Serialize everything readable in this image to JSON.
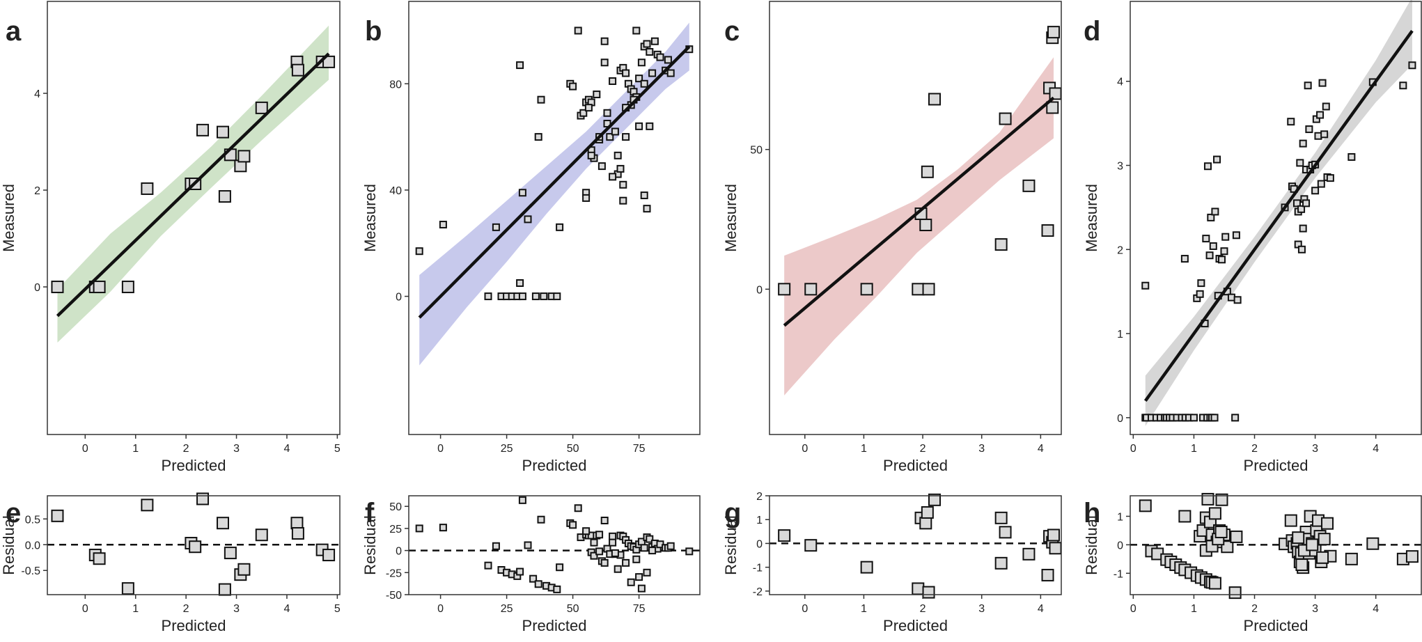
{
  "figure": {
    "colors": {
      "band_a": "#cfe3c8",
      "band_b": "#c7c9ec",
      "band_c": "#ecc9c9",
      "band_d": "#d6d6d6",
      "point_fill": "#d9d9d9",
      "line": "#111111"
    }
  },
  "chart_data": [
    {
      "id": "a",
      "panel_label": "a",
      "type": "scatter",
      "xlabel": "Predicted",
      "ylabel": "Measured",
      "xlim": [
        -0.75,
        5.05
      ],
      "ylim": [
        -3.05,
        5.9
      ],
      "xticks": [
        0,
        1,
        2,
        3,
        4,
        5
      ],
      "yticks": [
        0,
        2,
        4
      ],
      "marker_size": 16,
      "x": [
        -0.55,
        0.2,
        0.28,
        0.85,
        1.23,
        2.1,
        2.18,
        2.33,
        2.73,
        2.77,
        2.88,
        3.08,
        3.15,
        3.5,
        4.2,
        4.22,
        4.7,
        4.83
      ],
      "y": [
        0.0,
        0.0,
        0.0,
        0.0,
        2.03,
        2.13,
        2.13,
        3.24,
        3.2,
        1.87,
        2.73,
        2.5,
        2.7,
        3.7,
        4.65,
        4.48,
        4.65,
        4.65
      ],
      "fit": {
        "x": [
          -0.55,
          4.83
        ],
        "y": [
          -0.6,
          4.82
        ],
        "band_color": "#cfe3c8",
        "band_x": [
          -0.55,
          0.5,
          1.5,
          2.5,
          3.5,
          4.83
        ],
        "band_lower": [
          -1.15,
          -0.1,
          1.05,
          2.05,
          3.03,
          4.28
        ],
        "band_upper": [
          -0.05,
          1.1,
          1.95,
          2.9,
          3.95,
          5.4
        ]
      }
    },
    {
      "id": "b",
      "panel_label": "b",
      "type": "scatter",
      "xlabel": "Predicted",
      "ylabel": "Measured",
      "xlim": [
        -12,
        98
      ],
      "ylim": [
        -52,
        111
      ],
      "xticks": [
        0,
        25,
        50,
        75
      ],
      "yticks": [
        0,
        40,
        80
      ],
      "marker_size": 9,
      "x": [
        -8,
        1,
        21,
        31,
        33,
        30,
        45,
        18,
        23,
        25,
        27,
        29,
        31,
        36,
        39,
        42,
        44,
        30,
        38,
        37,
        52,
        49,
        50,
        53,
        55,
        56,
        57,
        57,
        58,
        59,
        60,
        61,
        62,
        63,
        64,
        65,
        66,
        67,
        68,
        68,
        69,
        70,
        71,
        72,
        72,
        73,
        74,
        75,
        76,
        77,
        77,
        78,
        79,
        80,
        81,
        82,
        83,
        85,
        86,
        87,
        94,
        55,
        55,
        57,
        63,
        69,
        69,
        70,
        73,
        75,
        77,
        78,
        54,
        56,
        62,
        67,
        70,
        74,
        79,
        65,
        60
      ],
      "y": [
        17,
        27,
        26,
        39,
        29,
        5,
        26,
        0,
        0,
        0,
        0,
        0,
        0,
        0,
        0,
        0,
        0,
        87,
        74,
        60,
        100,
        80,
        79,
        68,
        73,
        74,
        73,
        55,
        52,
        76,
        59,
        49,
        96,
        65,
        60,
        81,
        62,
        46,
        48,
        85,
        86,
        84,
        80,
        78,
        72,
        77,
        75,
        82,
        88,
        80,
        94,
        95,
        92,
        84,
        96,
        91,
        90,
        85,
        89,
        84,
        93,
        39,
        37,
        53,
        69,
        36,
        42,
        60,
        74,
        64,
        38,
        33,
        69,
        71,
        88,
        53,
        71,
        100,
        64,
        45,
        60
      ],
      "fit": {
        "x": [
          -8,
          94
        ],
        "y": [
          -8,
          94
        ],
        "band_color": "#c7c9ec",
        "band_x": [
          -8,
          10,
          25,
          40,
          55,
          70,
          85,
          94
        ],
        "band_lower": [
          -26,
          -4,
          13,
          31,
          48,
          63,
          78,
          85
        ],
        "band_upper": [
          8,
          23,
          36,
          49,
          62,
          77,
          92,
          103
        ]
      }
    },
    {
      "id": "c",
      "panel_label": "c",
      "type": "scatter",
      "xlabel": "Predicted",
      "ylabel": "Measured",
      "xlim": [
        -0.6,
        4.35
      ],
      "ylim": [
        -52,
        103
      ],
      "xticks": [
        0,
        1,
        2,
        3,
        4
      ],
      "yticks": [
        0,
        50
      ],
      "marker_size": 16,
      "x": [
        -0.35,
        0.1,
        1.05,
        1.92,
        1.97,
        2.05,
        2.08,
        2.1,
        2.2,
        3.33,
        3.4,
        3.8,
        4.12,
        4.15,
        4.2,
        4.22,
        4.25,
        4.2
      ],
      "y": [
        0,
        0,
        0,
        0,
        27,
        23,
        42,
        0,
        68,
        16,
        61,
        37,
        21,
        72,
        90,
        92,
        70,
        65
      ],
      "fit": {
        "x": [
          -0.35,
          4.22
        ],
        "y": [
          -13,
          68.5
        ],
        "band_color": "#ecc9c9",
        "band_x": [
          -0.35,
          0.5,
          1.2,
          1.9,
          2.6,
          3.3,
          4.22
        ],
        "band_lower": [
          -38,
          -18,
          -3,
          13,
          26,
          39,
          54
        ],
        "band_upper": [
          12,
          19,
          25,
          32,
          43,
          56,
          83
        ]
      }
    },
    {
      "id": "d",
      "panel_label": "d",
      "type": "scatter",
      "xlabel": "Predicted",
      "ylabel": "Measured",
      "xlim": [
        -0.05,
        4.75
      ],
      "ylim": [
        -0.2,
        4.95
      ],
      "xticks": [
        0,
        1,
        2,
        3,
        4
      ],
      "yticks": [
        0,
        1,
        2,
        3,
        4
      ],
      "marker_size": 9,
      "x": [
        0.2,
        0.22,
        0.3,
        0.38,
        0.45,
        0.52,
        0.55,
        0.6,
        0.65,
        0.72,
        0.8,
        0.86,
        0.92,
        1.0,
        1.15,
        1.22,
        1.27,
        1.3,
        1.34,
        1.68,
        0.2,
        0.85,
        1.05,
        1.1,
        1.12,
        1.18,
        1.2,
        1.23,
        1.26,
        1.28,
        1.32,
        1.35,
        1.38,
        1.4,
        1.42,
        1.46,
        1.5,
        1.52,
        1.55,
        1.62,
        1.7,
        1.72,
        2.5,
        2.6,
        2.62,
        2.65,
        2.7,
        2.72,
        2.75,
        2.77,
        2.8,
        2.82,
        2.85,
        2.88,
        2.9,
        2.92,
        2.95,
        3.0,
        3.02,
        3.05,
        3.08,
        3.1,
        3.12,
        3.15,
        3.18,
        3.2,
        3.25,
        3.6,
        3.95,
        4.45,
        4.6,
        2.72,
        2.78,
        2.8,
        2.85,
        3.0
      ],
      "y": [
        0,
        0,
        0,
        0,
        0,
        0,
        0,
        0,
        0,
        0,
        0,
        0,
        0,
        0,
        0,
        0,
        0,
        0,
        0,
        0,
        1.57,
        1.89,
        1.42,
        1.47,
        1.6,
        1.12,
        2.13,
        2.99,
        1.93,
        2.38,
        2.04,
        2.45,
        3.07,
        1.45,
        1.89,
        1.88,
        1.98,
        2.15,
        1.5,
        1.43,
        2.17,
        1.4,
        2.5,
        3.52,
        2.75,
        2.72,
        2.55,
        2.45,
        3.03,
        2.48,
        3.26,
        2.6,
        2.95,
        3.95,
        3.43,
        2.95,
        3.0,
        3.01,
        3.55,
        3.35,
        3.6,
        2.78,
        3.98,
        3.37,
        3.7,
        2.86,
        2.85,
        3.1,
        3.99,
        3.95,
        4.19,
        2.06,
        2.0,
        2.25,
        2.55,
        2.7
      ],
      "fit": {
        "x": [
          0.2,
          4.6
        ],
        "y": [
          0.2,
          4.6
        ],
        "band_color": "#d6d6d6",
        "band_x": [
          0.2,
          1.0,
          2.0,
          3.0,
          4.0,
          4.6
        ],
        "band_lower": [
          -0.1,
          0.8,
          1.85,
          2.85,
          3.75,
          4.2
        ],
        "band_upper": [
          0.5,
          1.2,
          2.15,
          3.15,
          4.25,
          5.0
        ]
      }
    },
    {
      "id": "e",
      "panel_label": "e",
      "type": "scatter",
      "xlabel": "Predicted",
      "ylabel": "Residual",
      "xlim": [
        -0.75,
        5.05
      ],
      "ylim": [
        -0.97,
        0.95
      ],
      "xticks": [
        0,
        1,
        2,
        3,
        4,
        5
      ],
      "yticks": [
        -0.5,
        0.0,
        0.5
      ],
      "yticklabels": [
        "-0.5",
        "0.0",
        "0.5"
      ],
      "marker_size": 16,
      "x": [
        -0.55,
        0.2,
        0.28,
        0.85,
        1.23,
        2.1,
        2.18,
        2.33,
        2.73,
        2.77,
        2.88,
        3.08,
        3.15,
        3.5,
        4.2,
        4.22,
        4.7,
        4.83
      ],
      "y": [
        0.56,
        -0.2,
        -0.27,
        -0.85,
        0.77,
        0.03,
        -0.04,
        0.89,
        0.42,
        -0.87,
        -0.16,
        -0.58,
        -0.48,
        0.19,
        0.42,
        0.22,
        -0.1,
        -0.2
      ],
      "reference_line": 0
    },
    {
      "id": "f",
      "panel_label": "f",
      "type": "scatter",
      "xlabel": "Predicted",
      "ylabel": "Residual",
      "xlim": [
        -12,
        98
      ],
      "ylim": [
        -50,
        62
      ],
      "xticks": [
        0,
        25,
        50,
        75
      ],
      "yticks": [
        -50,
        -25,
        0,
        25,
        50
      ],
      "marker_size": 9,
      "x": [
        -8,
        1,
        18,
        21,
        23,
        25,
        27,
        29,
        30,
        31,
        33,
        35,
        37,
        38,
        40,
        42,
        44,
        45,
        49,
        50,
        52,
        53,
        55,
        56,
        57,
        57,
        58,
        59,
        60,
        61,
        62,
        63,
        64,
        65,
        66,
        67,
        68,
        69,
        70,
        71,
        72,
        73,
        74,
        75,
        76,
        77,
        78,
        79,
        80,
        81,
        82,
        83,
        85,
        86,
        87,
        94,
        55,
        60,
        65,
        70,
        75,
        72,
        74,
        76,
        78,
        80,
        68,
        62,
        58,
        66
      ],
      "y": [
        25,
        26,
        -17,
        5,
        -22,
        -25,
        -27,
        -29,
        -24,
        57,
        6,
        -32,
        -38,
        35,
        -40,
        -42,
        -44,
        -19,
        31,
        29,
        48,
        15,
        18,
        17,
        17,
        -2,
        -6,
        17,
        -1,
        -12,
        34,
        2,
        -4,
        16,
        -4,
        -21,
        17,
        16,
        12,
        8,
        5,
        4,
        1,
        7,
        10,
        3,
        15,
        13,
        4,
        8,
        2,
        7,
        3,
        3,
        5,
        -1,
        22,
        18,
        9,
        -14,
        -30,
        -36,
        -10,
        -43,
        -25,
        0,
        -5,
        -14,
        9,
        -3
      ],
      "reference_line": 0
    },
    {
      "id": "g",
      "panel_label": "g",
      "type": "scatter",
      "xlabel": "Predicted",
      "ylabel": "Residual",
      "xlim": [
        -0.6,
        4.35
      ],
      "ylim": [
        -2.15,
        2.0
      ],
      "xticks": [
        0,
        1,
        2,
        3,
        4
      ],
      "yticks": [
        -2,
        -1,
        0,
        1,
        2
      ],
      "marker_size": 16,
      "x": [
        -0.35,
        0.1,
        1.05,
        1.92,
        1.97,
        2.05,
        2.08,
        2.1,
        2.2,
        3.33,
        3.33,
        3.4,
        3.8,
        4.12,
        4.15,
        4.2,
        4.22,
        4.25
      ],
      "y": [
        0.33,
        -0.08,
        -1.0,
        -1.9,
        1.07,
        0.85,
        1.3,
        -2.05,
        1.83,
        1.07,
        -0.83,
        0.47,
        -0.45,
        -1.33,
        0.3,
        0.05,
        0.35,
        -0.2
      ],
      "reference_line": 0
    },
    {
      "id": "h",
      "panel_label": "h",
      "type": "scatter",
      "xlabel": "Predicted",
      "ylabel": "Residual",
      "xlim": [
        -0.05,
        4.75
      ],
      "ylim": [
        -1.75,
        1.72
      ],
      "xticks": [
        0,
        1,
        2,
        3,
        4
      ],
      "yticks": [
        -1,
        0,
        1
      ],
      "marker_size": 16,
      "x": [
        0.2,
        0.3,
        0.4,
        0.55,
        0.62,
        0.7,
        0.78,
        0.85,
        0.95,
        1.05,
        1.12,
        1.2,
        1.27,
        1.3,
        1.35,
        1.68,
        0.85,
        1.1,
        1.15,
        1.2,
        1.23,
        1.27,
        1.3,
        1.35,
        1.38,
        1.42,
        1.46,
        1.5,
        1.55,
        1.7,
        1.2,
        1.3,
        1.4,
        1.45,
        2.5,
        2.6,
        2.62,
        2.65,
        2.7,
        2.72,
        2.75,
        2.77,
        2.8,
        2.85,
        2.88,
        2.9,
        2.92,
        2.95,
        3.0,
        3.02,
        3.05,
        3.08,
        3.1,
        3.15,
        3.2,
        3.25,
        3.6,
        3.95,
        4.45,
        4.6,
        2.78,
        2.82,
        2.72,
        3.12,
        2.95
      ],
      "y": [
        1.37,
        -0.22,
        -0.32,
        -0.52,
        -0.6,
        -0.7,
        -0.8,
        -0.88,
        -0.98,
        -1.08,
        -1.15,
        -1.22,
        -1.3,
        -1.32,
        -1.35,
        -1.68,
        1.0,
        0.3,
        0.5,
        0.95,
        1.6,
        0.8,
        0.35,
        1.1,
        0.1,
        0.5,
        1.58,
        0.35,
        -0.07,
        0.28,
        -0.2,
        -0.05,
        0.2,
        0.45,
        0.03,
        0.85,
        0.15,
        -0.07,
        0.05,
        -0.25,
        -0.6,
        -0.3,
        -0.8,
        0.45,
        0.2,
        -0.3,
        1.0,
        0.05,
        -0.2,
        0.5,
        0.85,
        0.3,
        -0.6,
        0.2,
        0.75,
        -0.4,
        -0.5,
        0.04,
        -0.5,
        -0.41,
        -0.7,
        -0.2,
        0.25,
        -0.45,
        0.0
      ],
      "reference_line": 0
    }
  ]
}
